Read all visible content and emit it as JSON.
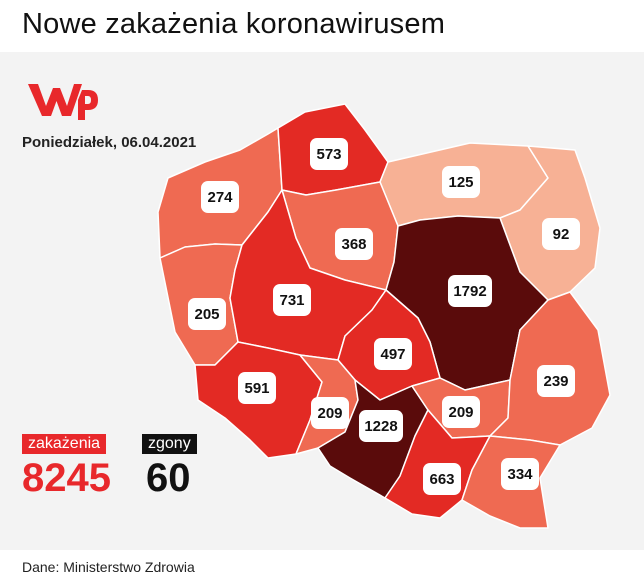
{
  "title": "Nowe zakażenia koronawirusem",
  "date": "Poniedziałek, 06.04.2021",
  "logo": {
    "name": "wp-logo",
    "text": "WP",
    "color": "#e8282b"
  },
  "regions": [
    {
      "id": "zachodniopomorskie",
      "value": "274",
      "color": "#ef6a52"
    },
    {
      "id": "pomorskie",
      "value": "573",
      "color": "#e32a24"
    },
    {
      "id": "warminsko-mazurskie",
      "value": "125",
      "color": "#f7b195"
    },
    {
      "id": "podlaskie",
      "value": "92",
      "color": "#f7b195"
    },
    {
      "id": "kujawsko-pomorskie",
      "value": "368",
      "color": "#ef6a52"
    },
    {
      "id": "lubuskie",
      "value": "205",
      "color": "#ef6a52"
    },
    {
      "id": "wielkopolskie",
      "value": "731",
      "color": "#e32a24"
    },
    {
      "id": "mazowieckie",
      "value": "1792",
      "color": "#5a0b0b"
    },
    {
      "id": "lodzkie",
      "value": "497",
      "color": "#e32a24"
    },
    {
      "id": "dolnoslaskie",
      "value": "591",
      "color": "#e32a24"
    },
    {
      "id": "opolskie",
      "value": "209",
      "color": "#ef6a52"
    },
    {
      "id": "slaskie",
      "value": "1228",
      "color": "#5a0b0b"
    },
    {
      "id": "swietokrzyskie",
      "value": "209",
      "color": "#ef6a52"
    },
    {
      "id": "lubelskie",
      "value": "239",
      "color": "#ef6a52"
    },
    {
      "id": "malopolskie",
      "value": "663",
      "color": "#e32a24"
    },
    {
      "id": "podkarpackie",
      "value": "334",
      "color": "#ef6a52"
    }
  ],
  "totals": {
    "cases_label": "zakażenia",
    "cases_value": "8245",
    "deaths_label": "zgony",
    "deaths_value": "60"
  },
  "source": "Dane: Ministerstwo Zdrowia",
  "colors": {
    "accent": "#e8282b",
    "level_low": "#f7b195",
    "level_mid": "#ef6a52",
    "level_high": "#e32a24",
    "level_max": "#5a0b0b",
    "border": "#ffffff"
  }
}
